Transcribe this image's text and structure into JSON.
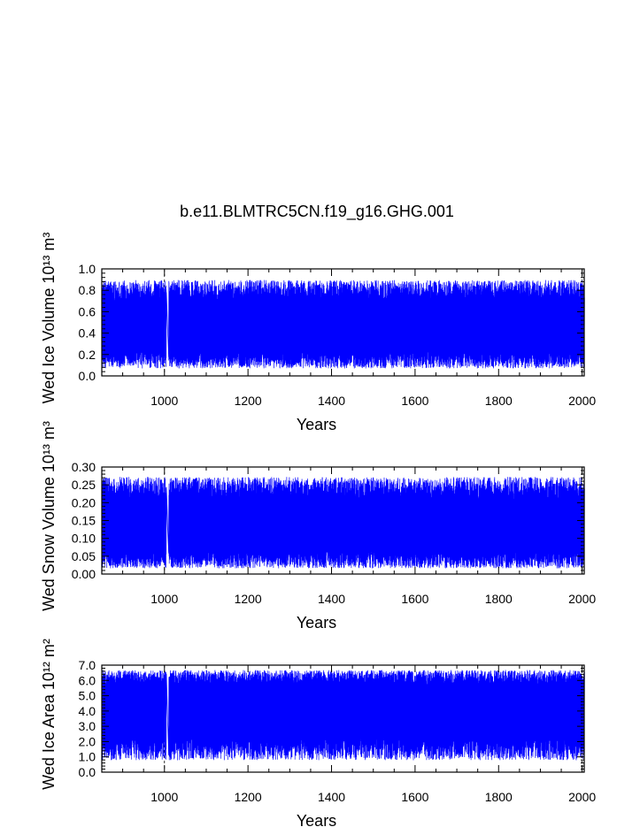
{
  "title": "b.e11.BLMTRC5CN.f19_g16.GHG.001",
  "colors": {
    "series": "#0000ff",
    "axes": "#000000",
    "grid": "#000000"
  },
  "chart_data": [
    {
      "type": "line",
      "ylabel": "Wed Ice Volume 10¹³ m³",
      "xlabel": "Years",
      "xlim": [
        850,
        2005
      ],
      "ylim": [
        0,
        1.0
      ],
      "xticks": [
        "1000",
        "1200",
        "1400",
        "1600",
        "1800",
        "2000"
      ],
      "yticks": [
        "0.0",
        "0.2",
        "0.4",
        "0.6",
        "0.8",
        "1.0"
      ],
      "grid": "dashed vertical at 1000, 2000",
      "series": [
        {
          "values_summary": {
            "typical_min": 0.15,
            "typical_max": 0.8,
            "peak": 0.92,
            "trough": 0.05,
            "gap_year": 1007
          }
        }
      ]
    },
    {
      "type": "line",
      "ylabel": "Wed Snow Volume 10¹³ m³",
      "xlabel": "Years",
      "xlim": [
        850,
        2005
      ],
      "ylim": [
        0,
        0.3
      ],
      "xticks": [
        "1000",
        "1200",
        "1400",
        "1600",
        "1800",
        "2000"
      ],
      "yticks": [
        "0.00",
        "0.05",
        "0.10",
        "0.15",
        "0.20",
        "0.25",
        "0.30"
      ],
      "grid": "dashed vertical at 1000, 2000",
      "series": [
        {
          "values_summary": {
            "typical_min": 0.04,
            "typical_max": 0.24,
            "peak": 0.28,
            "trough": 0.01,
            "gap_year": 1007
          }
        }
      ]
    },
    {
      "type": "line",
      "ylabel": "Wed Ice Area 10¹² m²",
      "xlabel": "Years",
      "xlim": [
        850,
        2005
      ],
      "ylim": [
        0,
        7.0
      ],
      "xticks": [
        "1000",
        "1200",
        "1400",
        "1600",
        "1800",
        "2000"
      ],
      "yticks": [
        "0.0",
        "1.0",
        "2.0",
        "3.0",
        "4.0",
        "5.0",
        "6.0",
        "7.0"
      ],
      "grid": "dashed vertical at 1000, 2000",
      "series": [
        {
          "values_summary": {
            "typical_min": 1.5,
            "typical_max": 6.2,
            "peak": 6.8,
            "trough": 0.6,
            "gap_year": 1007
          }
        }
      ]
    }
  ]
}
